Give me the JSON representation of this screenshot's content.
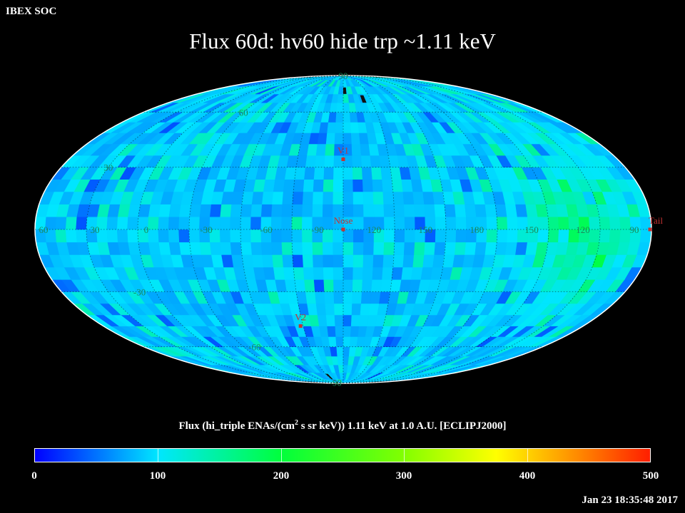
{
  "header": {
    "org": "IBEX SOC",
    "title": "Flux   60d: hv60 hide trp ~1.11 keV"
  },
  "map": {
    "projection": "mollweide",
    "grid_labels": [
      {
        "text": "90",
        "lon": 0,
        "lat": 90
      },
      {
        "text": "60",
        "lon": -90,
        "lat": 60
      },
      {
        "text": "30",
        "lon": -150,
        "lat": 30
      },
      {
        "text": "60",
        "lon": -175,
        "lat": 0
      },
      {
        "text": "30",
        "lon": -145,
        "lat": 0
      },
      {
        "text": "0",
        "lon": -115,
        "lat": 0
      },
      {
        "text": "-30",
        "lon": -80,
        "lat": 0
      },
      {
        "text": "-60",
        "lon": -45,
        "lat": 0
      },
      {
        "text": "-90",
        "lon": -15,
        "lat": 0
      },
      {
        "text": "120",
        "lon": 18,
        "lat": 0
      },
      {
        "text": "150",
        "lon": 48,
        "lat": 0
      },
      {
        "text": "180",
        "lon": 78,
        "lat": 0
      },
      {
        "text": "150",
        "lon": 110,
        "lat": 0
      },
      {
        "text": "120",
        "lon": 140,
        "lat": 0
      },
      {
        "text": "90",
        "lon": 170,
        "lat": 0
      },
      {
        "text": "-30",
        "lon": -130,
        "lat": -30
      },
      {
        "text": "-60",
        "lon": -80,
        "lat": -60
      },
      {
        "text": "-90",
        "lon": -40,
        "lat": -88
      }
    ],
    "markers": [
      {
        "name": "nose",
        "label": "Nose",
        "lon": 0,
        "lat": 0,
        "color": "#c83232"
      },
      {
        "name": "v1",
        "label": "V1",
        "lon": 0,
        "lat": 34,
        "color": "#c83232"
      },
      {
        "name": "v2",
        "label": "V2",
        "lon": -32,
        "lat": -48,
        "color": "#c83232"
      },
      {
        "name": "tail",
        "label": "Tail",
        "lon": 180,
        "lat": 0,
        "color": "#c83232"
      }
    ]
  },
  "colorbar": {
    "title": "Flux (hi_triple ENAs/(cm",
    "title_sup": "2",
    "title_rest": " s sr keV))  1.11 keV at 1.0 A.U. [ECLIPJ2000]",
    "min": 0,
    "max": 500,
    "ticks": [
      "0",
      "100",
      "200",
      "300",
      "400",
      "500"
    ]
  },
  "footer": {
    "timestamp": "Jan 23 18:35:48 2017"
  }
}
